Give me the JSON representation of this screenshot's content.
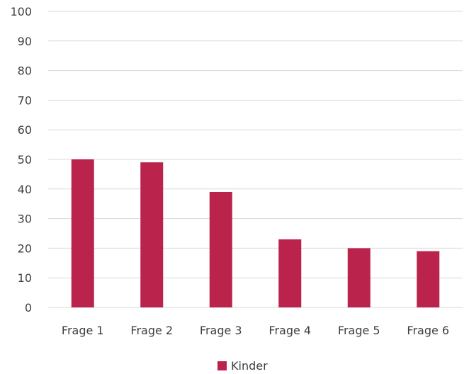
{
  "chart_data": {
    "type": "bar",
    "categories": [
      "Frage 1",
      "Frage 2",
      "Frage 3",
      "Frage 4",
      "Frage 5",
      "Frage 6"
    ],
    "series": [
      {
        "name": "Kinder",
        "values": [
          50,
          49,
          39,
          23,
          20,
          19
        ],
        "color": "#BA234B"
      }
    ],
    "title": "",
    "xlabel": "",
    "ylabel": "",
    "ylim": [
      0,
      100
    ],
    "yticks": [
      0,
      10,
      20,
      30,
      40,
      50,
      60,
      70,
      80,
      90,
      100
    ],
    "grid": true,
    "gridline_color": "#D9D9D9",
    "legend_position": "bottom"
  }
}
